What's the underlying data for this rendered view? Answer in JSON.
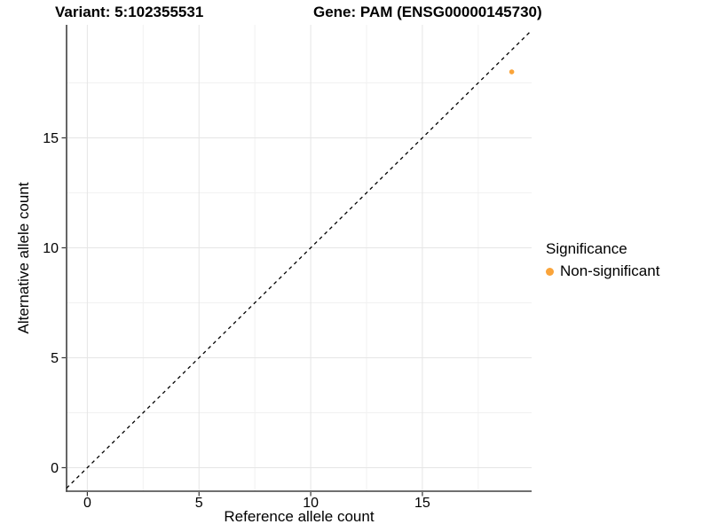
{
  "header": {
    "variant_title": "Variant: 5:102355531",
    "gene_title": "Gene: PAM (ENSG00000145730)"
  },
  "chart_data": {
    "type": "scatter",
    "xlabel": "Reference allele count",
    "ylabel": "Alternative allele count",
    "points": [
      {
        "x": 19,
        "y": 18,
        "series": "Non-significant"
      }
    ],
    "series": [
      {
        "name": "Non-significant",
        "color": "#FAA43A"
      }
    ],
    "xlim": [
      -0.93,
      19.89
    ],
    "ylim": [
      -1.07,
      20.14
    ],
    "x_ticks": [
      0,
      5,
      10,
      15
    ],
    "y_ticks": [
      0,
      5,
      10,
      15
    ],
    "x_minor_gridlines": [
      2.5,
      7.5,
      12.5,
      17.5
    ],
    "y_minor_gridlines": [
      2.5,
      7.5,
      12.5,
      17.5
    ],
    "grid": "major and minor gridlines on white panel",
    "reference_line": {
      "type": "identity y = x",
      "style": "dashed",
      "color": "#000000"
    },
    "legend": {
      "title": "Significance",
      "position": "right",
      "items": [
        {
          "label": "Non-significant",
          "color": "#FAA43A"
        }
      ]
    }
  },
  "colors": {
    "point": "#FAA43A",
    "grid_major": "#E5E5E5",
    "grid_minor": "#F1F1F1",
    "axis_line": "#404040",
    "tick": "#333333",
    "text": "#000000",
    "background": "#FFFFFF"
  }
}
